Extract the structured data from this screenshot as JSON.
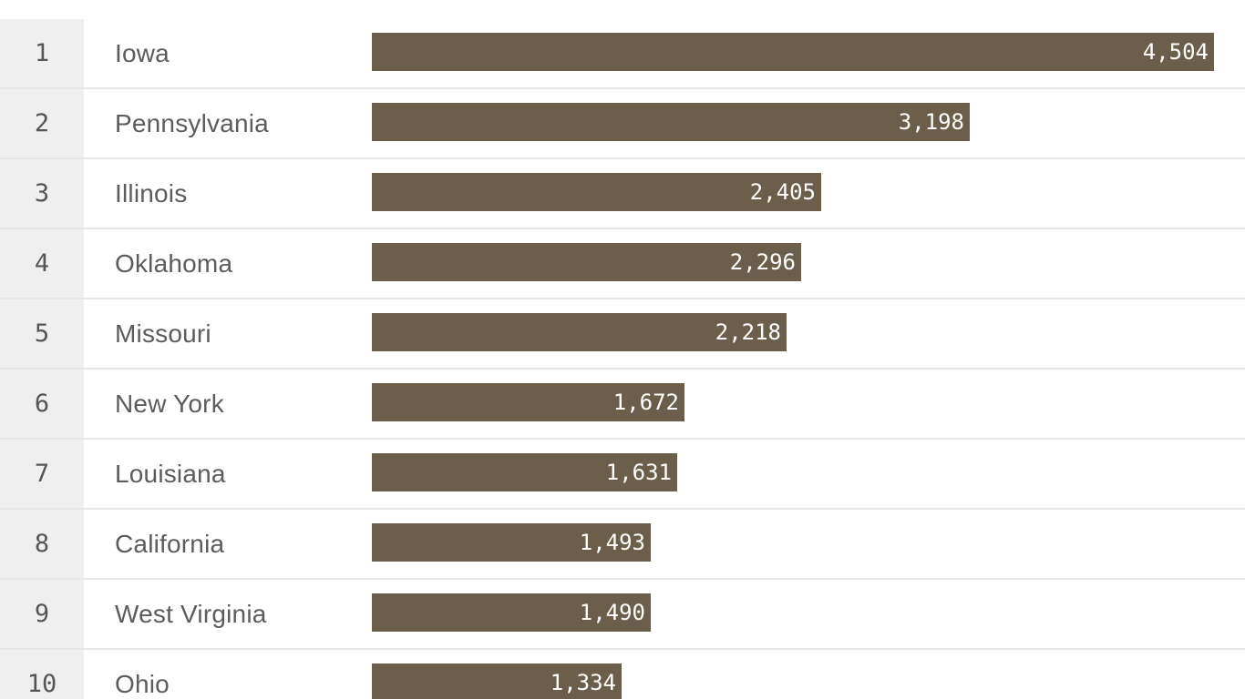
{
  "colors": {
    "bar": "#6b5f4b",
    "rank_background": "#efefef",
    "separator": "#e6e6e6",
    "text": "#5c5c5c",
    "value_text": "#ffffff"
  },
  "chart_data": {
    "type": "bar",
    "orientation": "horizontal",
    "grid": false,
    "xlim": [
      0,
      4504
    ],
    "ranks": [
      "1",
      "2",
      "3",
      "4",
      "5",
      "6",
      "7",
      "8",
      "9",
      "10"
    ],
    "categories": [
      "Iowa",
      "Pennsylvania",
      "Illinois",
      "Oklahoma",
      "Missouri",
      "New York",
      "Louisiana",
      "California",
      "West Virginia",
      "Ohio"
    ],
    "values": [
      4504,
      3198,
      2405,
      2296,
      2218,
      1672,
      1631,
      1493,
      1490,
      1334
    ],
    "value_labels": [
      "4,504",
      "3,198",
      "2,405",
      "2,296",
      "2,218",
      "1,672",
      "1,631",
      "1,493",
      "1,490",
      "1,334"
    ]
  }
}
